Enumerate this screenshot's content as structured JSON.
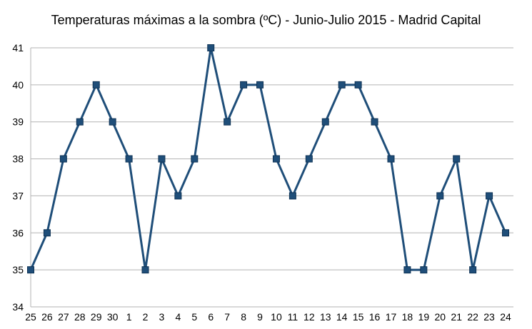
{
  "chart_data": {
    "type": "line",
    "title": "Temperaturas máximas a la sombra (ºC) - Junio-Julio 2015 - Madrid Capital",
    "xlabel": "",
    "ylabel": "",
    "categories": [
      "25",
      "26",
      "27",
      "28",
      "29",
      "30",
      "1",
      "2",
      "3",
      "4",
      "5",
      "6",
      "7",
      "8",
      "9",
      "10",
      "11",
      "12",
      "13",
      "14",
      "15",
      "16",
      "17",
      "18",
      "19",
      "20",
      "21",
      "22",
      "23",
      "24"
    ],
    "series": [
      {
        "values": [
          35,
          36,
          38,
          39,
          40,
          39,
          38,
          35,
          38,
          37,
          38,
          41,
          39,
          40,
          40,
          38,
          37,
          38,
          39,
          40,
          40,
          39,
          38,
          35,
          35,
          37,
          38,
          35,
          37,
          36
        ]
      }
    ],
    "ylim": [
      34,
      41
    ],
    "yticks": [
      34,
      35,
      36,
      37,
      38,
      39,
      40,
      41
    ],
    "grid": true,
    "legend": "none",
    "colors": {
      "line": "#1f4e79",
      "marker": "#1f4e79",
      "grid": "#b3b3b3",
      "axis": "#b3b3b3"
    }
  }
}
